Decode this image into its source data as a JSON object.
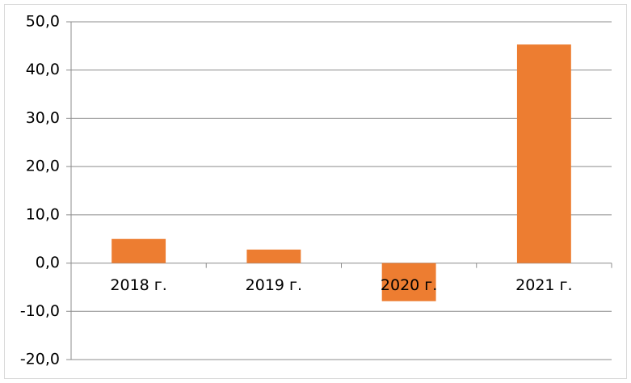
{
  "chart_data": {
    "type": "bar",
    "categories": [
      "2018 г.",
      "2019 г.",
      "2020 г.",
      "2021 г."
    ],
    "values": [
      5.0,
      2.8,
      -7.9,
      45.3
    ],
    "color": "#ed7d31",
    "ylim": [
      -20,
      50
    ],
    "yticks": [
      {
        "value": -20,
        "label": "-20,0"
      },
      {
        "value": -10,
        "label": "-10,0"
      },
      {
        "value": 0,
        "label": "0,0"
      },
      {
        "value": 10,
        "label": "10,0"
      },
      {
        "value": 20,
        "label": "20,0"
      },
      {
        "value": 30,
        "label": "30,0"
      },
      {
        "value": 40,
        "label": "40,0"
      },
      {
        "value": 50,
        "label": "50,0"
      }
    ],
    "grid": true
  }
}
